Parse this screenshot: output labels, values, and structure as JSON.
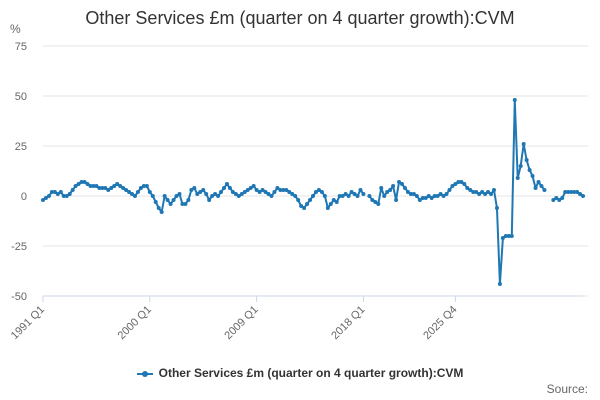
{
  "chart_data": {
    "type": "line",
    "title": "Other Services £m (quarter on 4 quarter growth):CVM",
    "ylabel": "%",
    "xlabel": "",
    "ylim": [
      -50,
      75
    ],
    "yticks": [
      75,
      50,
      25,
      0,
      -25,
      -50
    ],
    "grid": true,
    "legend_position": "bottom",
    "x_tick_labels": [
      "1991 Q1",
      "2000 Q1",
      "2009 Q1",
      "2018 Q1",
      "2025 Q4"
    ],
    "x_range": [
      "1991 Q1",
      "2025 Q4"
    ],
    "series": [
      {
        "name": "Other Services £m (quarter on 4 quarter growth):CVM",
        "color": "#1f77b4",
        "values": [
          -2,
          -1,
          0,
          2,
          2,
          1,
          2,
          0,
          0,
          1,
          3,
          5,
          6,
          7,
          7,
          6,
          5,
          5,
          5,
          4,
          4,
          4,
          3,
          4,
          5,
          6,
          5,
          4,
          3,
          2,
          1,
          0,
          2,
          4,
          5,
          5,
          2,
          0,
          -3,
          -6,
          -8,
          0,
          -2,
          -4,
          -2,
          0,
          1,
          -4,
          -4,
          -2,
          3,
          4,
          1,
          2,
          3,
          1,
          -2,
          0,
          1,
          0,
          2,
          4,
          6,
          4,
          2,
          1,
          0,
          1,
          2,
          3,
          4,
          5,
          3,
          2,
          3,
          2,
          1,
          0,
          2,
          4,
          3,
          3,
          3,
          2,
          1,
          0,
          -2,
          -5,
          -6,
          -4,
          -2,
          0,
          2,
          3,
          2,
          0,
          -6,
          -4,
          -2,
          -3,
          0,
          0,
          1,
          0,
          2,
          1,
          0,
          3,
          1,
          null,
          0,
          -2,
          -3,
          -4,
          4,
          0,
          2,
          3,
          5,
          -2,
          7,
          6,
          4,
          2,
          1,
          1,
          0,
          -2,
          -1,
          -1,
          0,
          -1,
          0,
          0,
          1,
          0,
          1,
          3,
          5,
          6,
          7,
          7,
          6,
          4,
          3,
          2,
          2,
          1,
          2,
          1,
          2,
          1,
          3,
          -6,
          -44,
          -21,
          -20,
          -20,
          -20,
          48,
          9,
          15,
          26,
          18,
          13,
          10,
          4,
          7,
          5,
          3,
          null,
          null,
          -2,
          -1,
          -2,
          -1,
          2,
          2,
          2,
          2,
          2,
          1,
          0
        ]
      }
    ]
  },
  "footer": {
    "source_label": "Source:"
  }
}
